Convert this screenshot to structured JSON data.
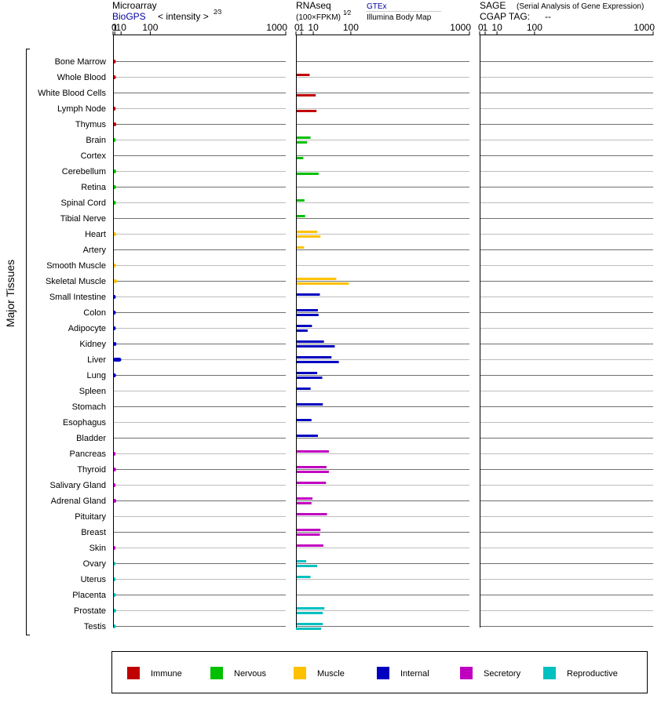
{
  "headers": {
    "microarray": {
      "title": "Microarray",
      "source": "BioGPS",
      "scale_prefix": "< intensity >",
      "scale_exponent": "2⁄3"
    },
    "rnaseq": {
      "title": "RNAseq",
      "scale_prefix": "(100×FPKM)",
      "scale_exponent": "1⁄2",
      "source_1": "GTEx",
      "source_2": "Illumina Body Map"
    },
    "sage": {
      "title": "SAGE",
      "subtitle": "(Serial Analysis of Gene Expression)",
      "tag_label": "CGAP TAG:",
      "tag_value": "--"
    }
  },
  "y_group_label": "Major Tissues",
  "colors": {
    "Immune": "#c00000",
    "Nervous": "#00c000",
    "Muscle": "#ffc000",
    "Internal": "#0000c0",
    "Secretory": "#c000c0",
    "Reproductive": "#00c0c0"
  },
  "chart_data": {
    "type": "bar",
    "x_ticks": [
      0,
      1,
      10,
      100,
      1000
    ],
    "x_tick_labels": [
      "0",
      "1",
      "10",
      "100",
      "1000"
    ],
    "xlim": [
      0,
      1000
    ],
    "legend": [
      "Immune",
      "Nervous",
      "Muscle",
      "Internal",
      "Secretory",
      "Reproductive"
    ],
    "legend_placement": "bottom",
    "tissues": [
      {
        "name": "Bone Marrow",
        "group": "Immune",
        "micro": 2.0,
        "gtex": null,
        "ibm": null
      },
      {
        "name": "Whole Blood",
        "group": "Immune",
        "micro": 2.1,
        "gtex": 6.2,
        "ibm": null
      },
      {
        "name": "White Blood Cells",
        "group": "Immune",
        "micro": null,
        "gtex": null,
        "ibm": 13
      },
      {
        "name": "Lymph Node",
        "group": "Immune",
        "micro": 1.9,
        "gtex": null,
        "ibm": 14
      },
      {
        "name": "Thymus",
        "group": "Immune",
        "micro": 2.6,
        "gtex": null,
        "ibm": null
      },
      {
        "name": "Brain",
        "group": "Nervous",
        "micro": 1.9,
        "gtex": 7.0,
        "ibm": 4.1
      },
      {
        "name": "Cortex",
        "group": "Nervous",
        "micro": null,
        "gtex": null,
        "ibm": 1.8
      },
      {
        "name": "Cerebellum",
        "group": "Nervous",
        "micro": 2.4,
        "gtex": null,
        "ibm": 17
      },
      {
        "name": "Retina",
        "group": "Nervous",
        "micro": 2.3,
        "gtex": null,
        "ibm": null
      },
      {
        "name": "Spinal Cord",
        "group": "Nervous",
        "micro": 2.1,
        "gtex": 2.4,
        "ibm": null
      },
      {
        "name": "Tibial Nerve",
        "group": "Nervous",
        "micro": null,
        "gtex": 2.8,
        "ibm": null
      },
      {
        "name": "Heart",
        "group": "Muscle",
        "micro": 2.4,
        "gtex": 15,
        "ibm": 20
      },
      {
        "name": "Artery",
        "group": "Muscle",
        "micro": null,
        "gtex": 2.2,
        "ibm": null
      },
      {
        "name": "Smooth Muscle",
        "group": "Muscle",
        "micro": 2.1,
        "gtex": null,
        "ibm": null
      },
      {
        "name": "Skeletal Muscle",
        "group": "Muscle",
        "micro": 3.6,
        "gtex": 54,
        "ibm": 93
      },
      {
        "name": "Small Intestine",
        "group": "Internal",
        "micro": 2.0,
        "gtex": 19,
        "ibm": null
      },
      {
        "name": "Colon",
        "group": "Internal",
        "micro": 2.0,
        "gtex": 16,
        "ibm": 17
      },
      {
        "name": "Adipocyte",
        "group": "Internal",
        "micro": 2.0,
        "gtex": 8.5,
        "ibm": 4.5
      },
      {
        "name": "Kidney",
        "group": "Internal",
        "micro": 2.8,
        "gtex": 26,
        "ibm": 50
      },
      {
        "name": "Liver",
        "group": "Internal",
        "micro": 10.5,
        "gtex": 42,
        "ibm": 61
      },
      {
        "name": "Lung",
        "group": "Internal",
        "micro": 2.2,
        "gtex": 15,
        "ibm": 23
      },
      {
        "name": "Spleen",
        "group": "Internal",
        "micro": null,
        "gtex": 7.1,
        "ibm": null
      },
      {
        "name": "Stomach",
        "group": "Internal",
        "micro": null,
        "gtex": 24,
        "ibm": null
      },
      {
        "name": "Esophagus",
        "group": "Internal",
        "micro": null,
        "gtex": 8.0,
        "ibm": null
      },
      {
        "name": "Bladder",
        "group": "Internal",
        "micro": null,
        "gtex": 16,
        "ibm": null
      },
      {
        "name": "Pancreas",
        "group": "Secretory",
        "micro": 1.8,
        "gtex": 36,
        "ibm": null
      },
      {
        "name": "Thyroid",
        "group": "Secretory",
        "micro": 2.3,
        "gtex": 31,
        "ibm": 36
      },
      {
        "name": "Salivary Gland",
        "group": "Secretory",
        "micro": 1.8,
        "gtex": 30,
        "ibm": null
      },
      {
        "name": "Adrenal Gland",
        "group": "Secretory",
        "micro": 2.6,
        "gtex": 9.1,
        "ibm": 8.0
      },
      {
        "name": "Pituitary",
        "group": "Secretory",
        "micro": null,
        "gtex": 32,
        "ibm": null
      },
      {
        "name": "Breast",
        "group": "Secretory",
        "micro": null,
        "gtex": 20,
        "ibm": 19
      },
      {
        "name": "Skin",
        "group": "Secretory",
        "micro": 1.7,
        "gtex": 25,
        "ibm": null
      },
      {
        "name": "Ovary",
        "group": "Reproductive",
        "micro": 1.6,
        "gtex": 3.5,
        "ibm": 15
      },
      {
        "name": "Uterus",
        "group": "Reproductive",
        "micro": 1.8,
        "gtex": 7.0,
        "ibm": null
      },
      {
        "name": "Placenta",
        "group": "Reproductive",
        "micro": 2.0,
        "gtex": null,
        "ibm": null
      },
      {
        "name": "Prostate",
        "group": "Reproductive",
        "micro": 2.3,
        "gtex": 27,
        "ibm": 24
      },
      {
        "name": "Testis",
        "group": "Reproductive",
        "micro": 2.0,
        "gtex": 24,
        "ibm": 21
      }
    ]
  }
}
